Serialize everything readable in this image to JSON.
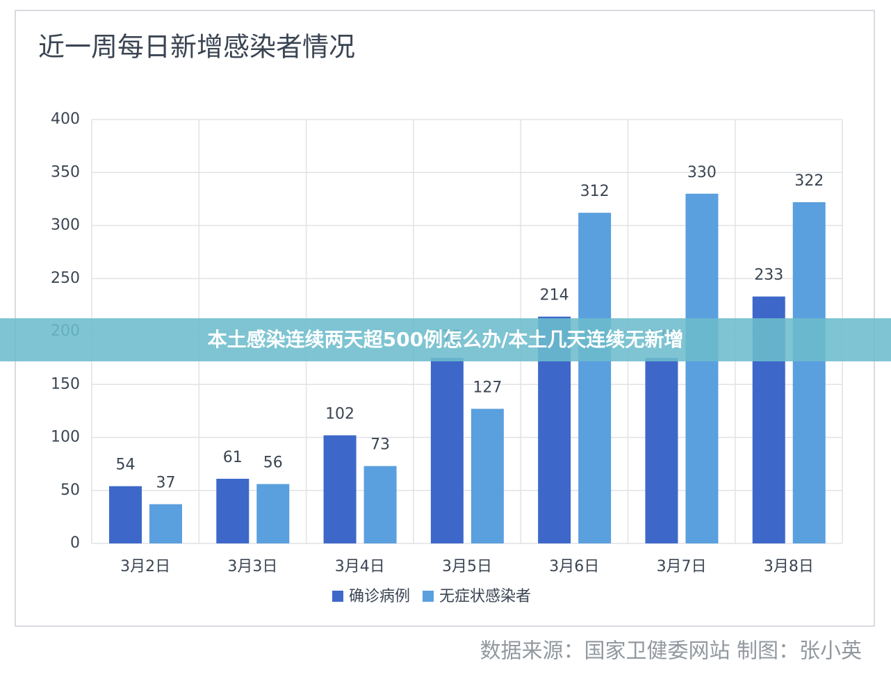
{
  "chart_data": {
    "type": "bar",
    "title": "近一周每日新增感染者情况",
    "categories": [
      "3月2日",
      "3月3日",
      "3月4日",
      "3月5日",
      "3月6日",
      "3月7日",
      "3月8日"
    ],
    "series": [
      {
        "name": "确诊病例",
        "color": "#3d68c9",
        "values": [
          54,
          61,
          102,
          175,
          214,
          175,
          233
        ]
      },
      {
        "name": "无症状感染者",
        "color": "#5a9fde",
        "values": [
          37,
          56,
          73,
          127,
          312,
          330,
          322
        ]
      }
    ],
    "ylim": [
      0,
      400
    ],
    "yticks": [
      0,
      50,
      100,
      150,
      200,
      250,
      300,
      350,
      400
    ],
    "grid": true,
    "source": "数据来源：国家卫健委网站  制图：张小英"
  },
  "banner": {
    "text": "本土感染连续两天超500例怎么办/本土几天连续无新增"
  }
}
